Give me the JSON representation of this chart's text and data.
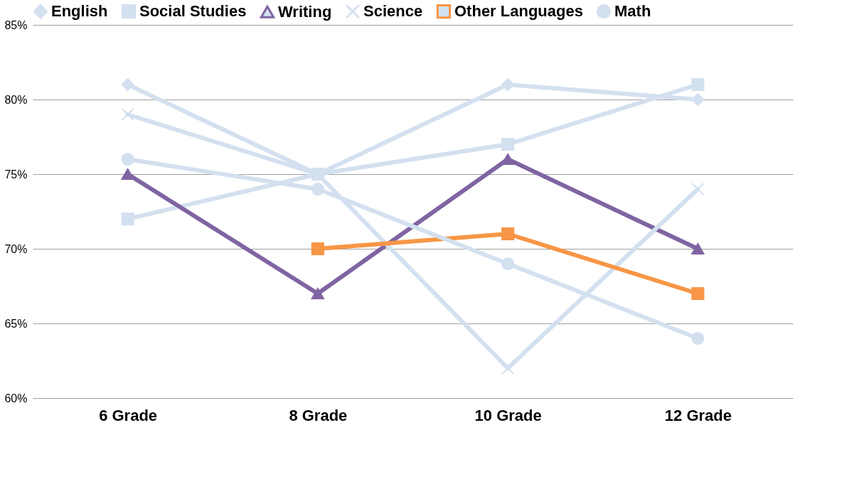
{
  "chart_data": {
    "type": "line",
    "categories": [
      "6 Grade",
      "8 Grade",
      "10 Grade",
      "12 Grade"
    ],
    "series": [
      {
        "name": "English",
        "color": "#d3e0ef",
        "marker": "diamond",
        "values": [
          81,
          75,
          81,
          80
        ]
      },
      {
        "name": "Social Studies",
        "color": "#d3e0ef",
        "marker": "square",
        "values": [
          72,
          75,
          77,
          81
        ]
      },
      {
        "name": "Writing",
        "color": "#8064a2",
        "marker": "triangle",
        "values": [
          75,
          67,
          76,
          70
        ]
      },
      {
        "name": "Science",
        "color": "#d3e0ef",
        "marker": "cross",
        "values": [
          79,
          75,
          62,
          74
        ]
      },
      {
        "name": "Other Languages",
        "color": "#f79646",
        "marker": "square",
        "values": [
          null,
          70,
          71,
          67
        ]
      },
      {
        "name": "Math",
        "color": "#d3e0ef",
        "marker": "circle",
        "values": [
          76,
          74,
          69,
          64
        ]
      }
    ],
    "ylim": [
      60,
      85
    ],
    "yticks": [
      {
        "value": 60,
        "label": "60%"
      },
      {
        "value": 65,
        "label": "65%"
      },
      {
        "value": 70,
        "label": "70%"
      },
      {
        "value": 75,
        "label": "75%"
      },
      {
        "value": 80,
        "label": "80%"
      },
      {
        "value": 85,
        "label": "85%"
      }
    ],
    "grid": "y",
    "legend": "top",
    "line_style": "solid"
  }
}
